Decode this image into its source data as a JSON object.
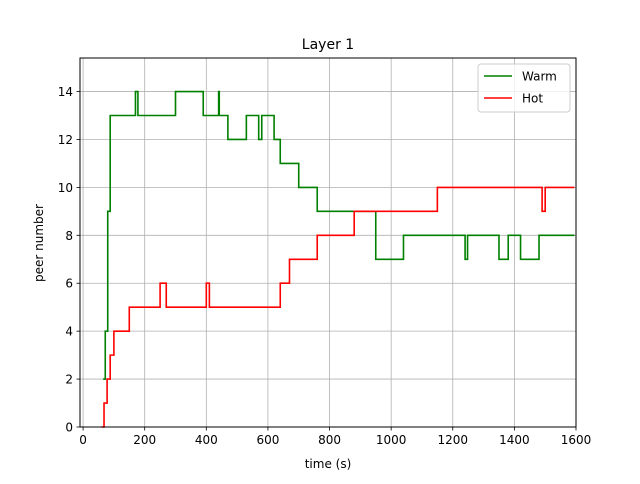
{
  "chart_data": {
    "type": "line",
    "title": "Layer 1",
    "xlabel": "time (s)",
    "ylabel": "peer number",
    "xlim": [
      -10,
      1600
    ],
    "ylim": [
      0,
      15.4
    ],
    "xticks": [
      0,
      200,
      400,
      600,
      800,
      1000,
      1200,
      1400,
      1600
    ],
    "yticks": [
      0,
      2,
      4,
      6,
      8,
      10,
      12,
      14
    ],
    "grid": true,
    "legend_position": "top-right",
    "step": true,
    "series": [
      {
        "name": "Warm",
        "color": "#008000",
        "x": [
          65,
          72,
          80,
          88,
          170,
          178,
          300,
          390,
          440,
          442,
          470,
          530,
          570,
          580,
          590,
          620,
          640,
          700,
          760,
          880,
          950,
          1040,
          1240,
          1248,
          1350,
          1380,
          1420,
          1480,
          1595
        ],
        "y": [
          2,
          4,
          9,
          13,
          14,
          13,
          14,
          13,
          14,
          13,
          12,
          13,
          12,
          13,
          13,
          12,
          11,
          10,
          9,
          9,
          7,
          8,
          7,
          8,
          7,
          8,
          7,
          8,
          8
        ]
      },
      {
        "name": "Hot",
        "color": "#ff0000",
        "x": [
          60,
          68,
          78,
          88,
          100,
          150,
          250,
          270,
          400,
          410,
          640,
          670,
          760,
          880,
          1150,
          1490,
          1500,
          1595
        ],
        "y": [
          0,
          1,
          2,
          3,
          4,
          5,
          6,
          5,
          6,
          5,
          6,
          7,
          8,
          9,
          10,
          9,
          10,
          10
        ]
      }
    ]
  }
}
